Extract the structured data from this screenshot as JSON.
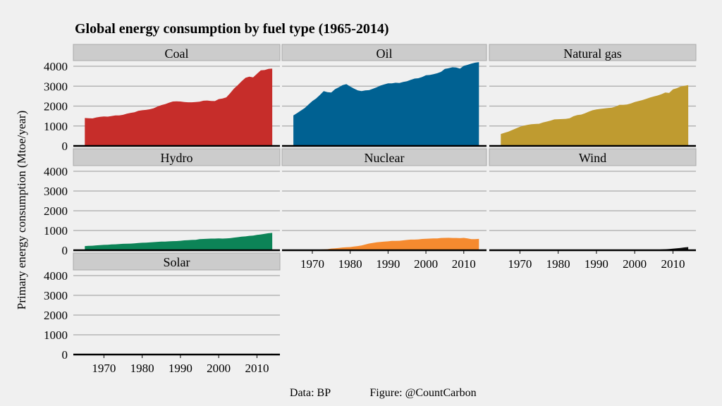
{
  "chart_data": {
    "type": "area",
    "title": "Global energy consumption by fuel type (1965-2014)",
    "ylabel": "Primary energy consumption (Mtoe/year)",
    "xlabel": "",
    "caption_source": "Data: BP",
    "caption_figure": "Figure: @CountCarbon",
    "ylim": [
      0,
      4000
    ],
    "yticks": [
      0,
      1000,
      2000,
      3000,
      4000
    ],
    "xlim": [
      1962,
      2016
    ],
    "xticks": [
      1970,
      1980,
      1990,
      2000,
      2010
    ],
    "grid": true,
    "x_start": 1965,
    "x_end": 2014,
    "series": [
      {
        "name": "Coal",
        "color": "#c62d2a",
        "values": [
          1400,
          1390,
          1380,
          1430,
          1460,
          1480,
          1470,
          1500,
          1530,
          1530,
          1560,
          1620,
          1660,
          1690,
          1760,
          1790,
          1810,
          1840,
          1890,
          1980,
          2050,
          2100,
          2170,
          2230,
          2240,
          2230,
          2200,
          2190,
          2190,
          2200,
          2220,
          2270,
          2280,
          2260,
          2250,
          2350,
          2380,
          2440,
          2650,
          2880,
          3050,
          3250,
          3420,
          3480,
          3440,
          3620,
          3800,
          3810,
          3870,
          3880
        ]
      },
      {
        "name": "Oil",
        "color": "#006192",
        "values": [
          1530,
          1650,
          1780,
          1900,
          2080,
          2250,
          2380,
          2560,
          2750,
          2700,
          2680,
          2850,
          2950,
          3050,
          3100,
          2980,
          2880,
          2790,
          2750,
          2790,
          2800,
          2870,
          2940,
          3030,
          3090,
          3140,
          3140,
          3170,
          3160,
          3210,
          3250,
          3320,
          3380,
          3400,
          3460,
          3550,
          3560,
          3600,
          3650,
          3720,
          3870,
          3900,
          3950,
          3940,
          3880,
          4020,
          4070,
          4130,
          4180,
          4210
        ]
      },
      {
        "name": "Natural gas",
        "color": "#bf9b30",
        "values": [
          600,
          660,
          720,
          800,
          880,
          960,
          1020,
          1060,
          1090,
          1100,
          1110,
          1180,
          1220,
          1270,
          1330,
          1340,
          1350,
          1360,
          1390,
          1490,
          1550,
          1570,
          1640,
          1720,
          1790,
          1830,
          1860,
          1880,
          1900,
          1920,
          1970,
          2060,
          2060,
          2080,
          2130,
          2200,
          2250,
          2300,
          2360,
          2430,
          2480,
          2530,
          2600,
          2680,
          2660,
          2840,
          2900,
          2980,
          3020,
          3050
        ]
      },
      {
        "name": "Hydro",
        "color": "#0c8457",
        "values": [
          210,
          220,
          230,
          245,
          260,
          270,
          280,
          295,
          300,
          315,
          325,
          330,
          335,
          350,
          365,
          380,
          385,
          395,
          410,
          425,
          435,
          440,
          450,
          460,
          465,
          480,
          500,
          510,
          520,
          530,
          560,
          570,
          580,
          590,
          590,
          600,
          590,
          600,
          610,
          640,
          660,
          690,
          700,
          730,
          740,
          780,
          800,
          830,
          860,
          880
        ]
      },
      {
        "name": "Nuclear",
        "color": "#f58a2f",
        "values": [
          5,
          8,
          10,
          12,
          15,
          20,
          25,
          35,
          45,
          55,
          85,
          95,
          115,
          140,
          150,
          160,
          190,
          210,
          240,
          290,
          340,
          370,
          400,
          420,
          440,
          450,
          470,
          475,
          480,
          500,
          520,
          540,
          540,
          550,
          570,
          580,
          590,
          600,
          600,
          620,
          625,
          630,
          620,
          620,
          610,
          625,
          600,
          560,
          565,
          575
        ]
      },
      {
        "name": "Wind",
        "color": "#111111",
        "values": [
          0,
          0,
          0,
          0,
          0,
          0,
          0,
          0,
          0,
          0,
          0,
          0,
          0,
          0,
          0,
          0,
          0,
          0,
          0,
          0,
          0,
          0,
          0,
          0,
          0,
          1,
          1,
          1,
          1,
          1,
          2,
          2,
          2,
          3,
          5,
          7,
          9,
          12,
          14,
          19,
          24,
          30,
          39,
          50,
          62,
          78,
          96,
          118,
          144,
          160
        ]
      },
      {
        "name": "Solar",
        "color": "#111111",
        "values": [
          0,
          0,
          0,
          0,
          0,
          0,
          0,
          0,
          0,
          0,
          0,
          0,
          0,
          0,
          0,
          0,
          0,
          0,
          0,
          0,
          0,
          0,
          0,
          0,
          0,
          0,
          0,
          0,
          0,
          0,
          0,
          0,
          0,
          0,
          0,
          0,
          0,
          0,
          0,
          0,
          0,
          1,
          1,
          2,
          3,
          7,
          14,
          22,
          30,
          40
        ]
      }
    ]
  }
}
